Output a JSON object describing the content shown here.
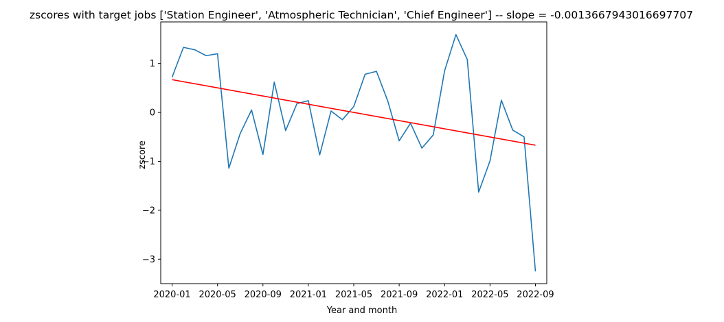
{
  "chart_data": {
    "type": "line",
    "title": "zscores with target jobs ['Station Engineer', 'Atmospheric Technician', 'Chief Engineer'] -- slope = -0.0013667943016697707",
    "xlabel": "Year and month",
    "ylabel": "zscore",
    "x_ticks": [
      "2020-01",
      "2020-05",
      "2020-09",
      "2021-01",
      "2021-05",
      "2021-09",
      "2022-01",
      "2022-05",
      "2022-09"
    ],
    "y_ticks": [
      -3,
      -2,
      -1,
      0,
      1
    ],
    "ylim": [
      -3.5,
      1.85
    ],
    "xlim": [
      "2019-12",
      "2022-10"
    ],
    "grid": false,
    "legend": "none",
    "series": [
      {
        "color": "#1f77b4",
        "x": [
          "2020-01",
          "2020-02",
          "2020-03",
          "2020-04",
          "2020-05",
          "2020-06",
          "2020-07",
          "2020-08",
          "2020-09",
          "2020-10",
          "2020-11",
          "2020-12",
          "2021-01",
          "2021-02",
          "2021-03",
          "2021-04",
          "2021-05",
          "2021-06",
          "2021-07",
          "2021-08",
          "2021-09",
          "2021-10",
          "2021-11",
          "2021-12",
          "2022-01",
          "2022-02",
          "2022-03",
          "2022-04",
          "2022-05",
          "2022-06",
          "2022-07",
          "2022-08",
          "2022-09"
        ],
        "y": [
          0.72,
          1.33,
          1.28,
          1.16,
          1.2,
          -1.14,
          -0.43,
          0.05,
          -0.86,
          0.62,
          -0.37,
          0.18,
          0.24,
          -0.87,
          0.03,
          -0.15,
          0.12,
          0.78,
          0.84,
          0.23,
          -0.58,
          -0.22,
          -0.73,
          -0.46,
          0.85,
          1.59,
          1.08,
          -1.63,
          -0.99,
          0.25,
          -0.36,
          -0.5,
          -3.25
        ]
      },
      {
        "color": "#ff0000",
        "x": [
          "2020-01",
          "2022-09"
        ],
        "y": [
          0.67,
          -0.67
        ]
      }
    ]
  }
}
